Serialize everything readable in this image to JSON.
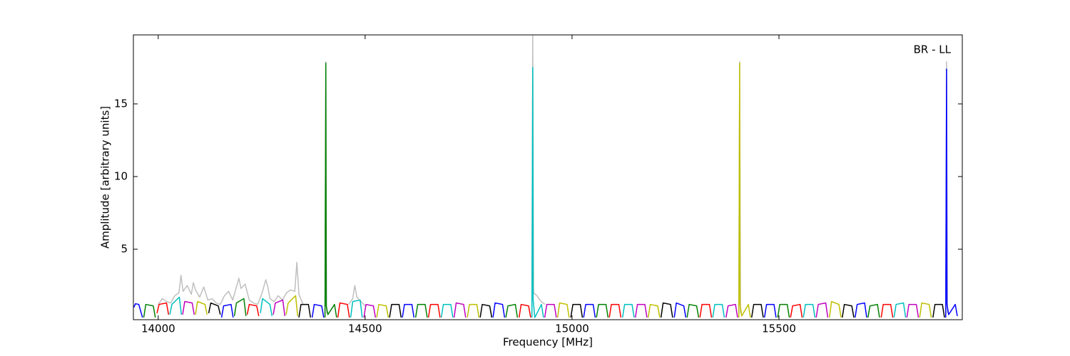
{
  "chart_data": {
    "type": "line",
    "xlabel": "Frequency [MHz]",
    "ylabel": "Amplitude [arbitrary units]",
    "annotation": "BR - LL",
    "xlim": [
      13940,
      15943
    ],
    "ylim": [
      0.15,
      19.75
    ],
    "xticks": [
      14000,
      14500,
      15000,
      15500
    ],
    "yticks": [
      5,
      10,
      15
    ],
    "series": [
      {
        "color": "#bfbfbf",
        "x": [
          14000,
          14010,
          14020,
          14030,
          14040,
          14050,
          14055,
          14060,
          14070,
          14080,
          14085,
          14090,
          14100,
          14110,
          14120,
          14130,
          14140,
          14150,
          14160,
          14170,
          14180,
          14190,
          14195,
          14200,
          14210,
          14220,
          14230,
          14240,
          14250,
          14260,
          14265,
          14270,
          14280,
          14290,
          14300,
          14310,
          14320,
          14330,
          14335,
          14340,
          14350,
          null,
          14403,
          14405,
          14407,
          null,
          14460,
          14470,
          14475,
          14480,
          14490,
          14500,
          null,
          14903,
          14905,
          14907,
          14915,
          14925,
          14935,
          null,
          15403,
          15405,
          15407,
          null,
          15903,
          15905,
          15907
        ],
        "values": [
          1.2,
          1.6,
          1.4,
          1.3,
          1.8,
          2.0,
          3.2,
          2.1,
          2.5,
          1.9,
          2.7,
          2.2,
          1.7,
          2.4,
          1.5,
          1.6,
          1.3,
          1.2,
          1.8,
          2.1,
          1.5,
          2.5,
          3.0,
          2.3,
          2.6,
          1.5,
          1.3,
          1.2,
          1.9,
          2.9,
          2.4,
          1.6,
          1.4,
          1.8,
          1.5,
          2.0,
          2.2,
          2.1,
          4.1,
          1.9,
          1.2,
          null,
          0.5,
          17.9,
          0.6,
          null,
          1.2,
          1.6,
          2.5,
          1.7,
          1.4,
          1.1,
          null,
          1.0,
          19.7,
          2.0,
          1.8,
          1.4,
          1.2,
          null,
          0.5,
          17.9,
          0.6,
          null,
          0.5,
          17.9,
          0.6
        ]
      },
      {
        "color": "#0000ff",
        "x": [
          13941,
          13945,
          13953,
          13962,
          null,
          14153,
          14158,
          14176,
          14181,
          null,
          14372,
          14377,
          14395,
          14400,
          null,
          14590,
          14595,
          14613,
          14618,
          null,
          14809,
          14814,
          14832,
          14837,
          null,
          15028,
          15033,
          15051,
          15056,
          null,
          15247,
          15252,
          15270,
          15275,
          null,
          15465,
          15470,
          15488,
          15493,
          null,
          15684,
          15689,
          15707,
          15712,
          null,
          15903,
          15905,
          15906,
          15910,
          15926,
          15931
        ],
        "values": [
          1.0,
          1.25,
          1.2,
          0.3,
          null,
          0.3,
          1.1,
          1.2,
          0.3,
          null,
          0.3,
          1.2,
          1.1,
          0.3,
          null,
          0.3,
          1.2,
          1.2,
          0.3,
          null,
          0.3,
          1.3,
          1.2,
          0.3,
          null,
          0.3,
          1.2,
          1.2,
          0.3,
          null,
          0.3,
          1.3,
          1.1,
          0.3,
          null,
          0.3,
          1.2,
          1.2,
          0.3,
          null,
          0.3,
          1.2,
          1.3,
          0.3,
          null,
          0.3,
          17.4,
          1.2,
          0.5,
          1.2,
          0.4
        ]
      },
      {
        "color": "#008000",
        "x": [
          13965,
          13970,
          13988,
          13993,
          null,
          14184,
          14189,
          14207,
          14212,
          null,
          14403,
          14405,
          14406,
          14410,
          14426,
          14431,
          null,
          14622,
          14627,
          14645,
          14650,
          null,
          14840,
          14845,
          14863,
          14868,
          null,
          15059,
          15064,
          15082,
          15087,
          null,
          15278,
          15283,
          15301,
          15306,
          null,
          15497,
          15502,
          15520,
          15525,
          null,
          15715,
          15720,
          15738,
          15743
        ],
        "values": [
          0.3,
          1.2,
          1.1,
          0.3,
          null,
          0.4,
          1.3,
          1.6,
          0.4,
          null,
          0.3,
          17.8,
          1.1,
          0.5,
          1.2,
          0.3,
          null,
          0.3,
          1.2,
          1.2,
          0.3,
          null,
          0.3,
          1.1,
          1.2,
          0.3,
          null,
          0.3,
          1.2,
          1.2,
          0.3,
          null,
          0.3,
          1.2,
          1.1,
          0.3,
          null,
          0.3,
          1.2,
          1.2,
          0.3,
          null,
          0.3,
          1.1,
          1.2,
          0.3
        ]
      },
      {
        "color": "#ff0000",
        "x": [
          13997,
          14002,
          14020,
          14025,
          null,
          14215,
          14220,
          14238,
          14243,
          null,
          14434,
          14439,
          14457,
          14462,
          null,
          14653,
          14658,
          14676,
          14681,
          null,
          14872,
          14877,
          14895,
          14900,
          null,
          15090,
          15095,
          15113,
          15118,
          null,
          15309,
          15314,
          15332,
          15337,
          null,
          15528,
          15533,
          15551,
          15556,
          null,
          15747,
          15752,
          15770,
          15775
        ],
        "values": [
          0.6,
          1.2,
          1.3,
          0.5,
          null,
          0.5,
          1.2,
          1.1,
          0.4,
          null,
          0.3,
          1.3,
          1.2,
          0.3,
          null,
          0.3,
          1.2,
          1.2,
          0.3,
          null,
          0.3,
          1.2,
          1.1,
          0.3,
          null,
          0.3,
          1.2,
          1.2,
          0.3,
          null,
          0.3,
          1.2,
          1.2,
          0.3,
          null,
          0.3,
          1.1,
          1.2,
          0.3,
          null,
          0.3,
          1.2,
          1.2,
          0.3
        ]
      },
      {
        "color": "#00bfbf",
        "x": [
          14028,
          14033,
          14051,
          14056,
          null,
          14247,
          14252,
          14270,
          14275,
          null,
          14465,
          14470,
          14488,
          14493,
          null,
          14684,
          14689,
          14707,
          14712,
          null,
          14903,
          14905,
          14906,
          14910,
          14926,
          14931,
          null,
          15122,
          15127,
          15145,
          15150,
          null,
          15340,
          15345,
          15363,
          15368,
          null,
          15559,
          15564,
          15582,
          15587,
          null,
          15778,
          15783,
          15801,
          15806
        ],
        "values": [
          0.5,
          1.2,
          1.7,
          0.5,
          null,
          0.6,
          1.6,
          1.2,
          0.4,
          null,
          0.3,
          1.4,
          1.5,
          0.3,
          null,
          0.3,
          1.2,
          1.2,
          0.3,
          null,
          0.3,
          17.5,
          1.5,
          0.3,
          1.2,
          0.3,
          null,
          0.3,
          1.2,
          1.2,
          0.3,
          null,
          0.3,
          1.2,
          1.2,
          0.3,
          null,
          0.3,
          1.2,
          1.2,
          0.3,
          null,
          0.3,
          1.2,
          1.3,
          0.3
        ]
      },
      {
        "color": "#bf00bf",
        "x": [
          14059,
          14064,
          14082,
          14087,
          null,
          14278,
          14283,
          14301,
          14306,
          null,
          14497,
          14502,
          14520,
          14525,
          null,
          14715,
          14720,
          14738,
          14743,
          null,
          14934,
          14939,
          14957,
          14962,
          null,
          15153,
          15158,
          15176,
          15181,
          null,
          15372,
          15377,
          15395,
          15400,
          null,
          15590,
          15595,
          15613,
          15618,
          null,
          15809,
          15814,
          15832,
          15837
        ],
        "values": [
          0.5,
          1.4,
          1.3,
          0.5,
          null,
          0.5,
          1.3,
          1.5,
          0.4,
          null,
          0.3,
          1.2,
          1.1,
          0.3,
          null,
          0.3,
          1.3,
          1.2,
          0.3,
          null,
          0.3,
          1.2,
          1.2,
          0.3,
          null,
          0.3,
          1.2,
          1.2,
          0.3,
          null,
          0.3,
          1.1,
          1.2,
          0.3,
          null,
          0.3,
          1.2,
          1.3,
          0.3,
          null,
          0.3,
          1.2,
          1.2,
          0.3
        ]
      },
      {
        "color": "#bfbf00",
        "x": [
          14090,
          14095,
          14113,
          14118,
          null,
          14309,
          14314,
          14332,
          14337,
          null,
          14528,
          14533,
          14551,
          14556,
          null,
          14747,
          14752,
          14770,
          14775,
          null,
          14965,
          14970,
          14988,
          14993,
          null,
          15184,
          15189,
          15207,
          15212,
          null,
          15403,
          15405,
          15406,
          15410,
          15426,
          15431,
          null,
          15622,
          15627,
          15645,
          15650,
          null,
          15840,
          15845,
          15863,
          15868
        ],
        "values": [
          0.5,
          1.4,
          1.2,
          0.5,
          null,
          0.5,
          1.3,
          1.8,
          0.4,
          null,
          0.3,
          1.2,
          1.1,
          0.3,
          null,
          0.3,
          1.2,
          1.2,
          0.3,
          null,
          0.3,
          1.3,
          1.2,
          0.3,
          null,
          0.3,
          1.2,
          1.1,
          0.3,
          null,
          0.3,
          17.8,
          1.2,
          0.4,
          1.2,
          0.3,
          null,
          0.3,
          1.4,
          1.2,
          0.3,
          null,
          0.3,
          1.3,
          1.2,
          0.3
        ]
      },
      {
        "color": "#000000",
        "x": [
          14122,
          14127,
          14145,
          14150,
          null,
          14340,
          14345,
          14363,
          14368,
          null,
          14559,
          14564,
          14582,
          14587,
          null,
          14778,
          14783,
          14801,
          14806,
          null,
          14997,
          15002,
          15020,
          15025,
          null,
          15215,
          15220,
          15238,
          15243,
          null,
          15434,
          15439,
          15457,
          15462,
          null,
          15653,
          15658,
          15676,
          15681,
          null,
          15872,
          15877,
          15895,
          15900
        ],
        "values": [
          0.6,
          1.3,
          1.1,
          0.5,
          null,
          0.3,
          1.2,
          1.2,
          0.3,
          null,
          0.3,
          1.2,
          1.2,
          0.3,
          null,
          0.3,
          1.2,
          1.1,
          0.3,
          null,
          0.3,
          1.2,
          1.2,
          0.3,
          null,
          0.3,
          1.3,
          1.2,
          0.3,
          null,
          0.3,
          1.2,
          1.2,
          0.3,
          null,
          0.3,
          1.2,
          1.1,
          0.3,
          null,
          0.3,
          1.2,
          1.2,
          0.3
        ]
      }
    ]
  }
}
